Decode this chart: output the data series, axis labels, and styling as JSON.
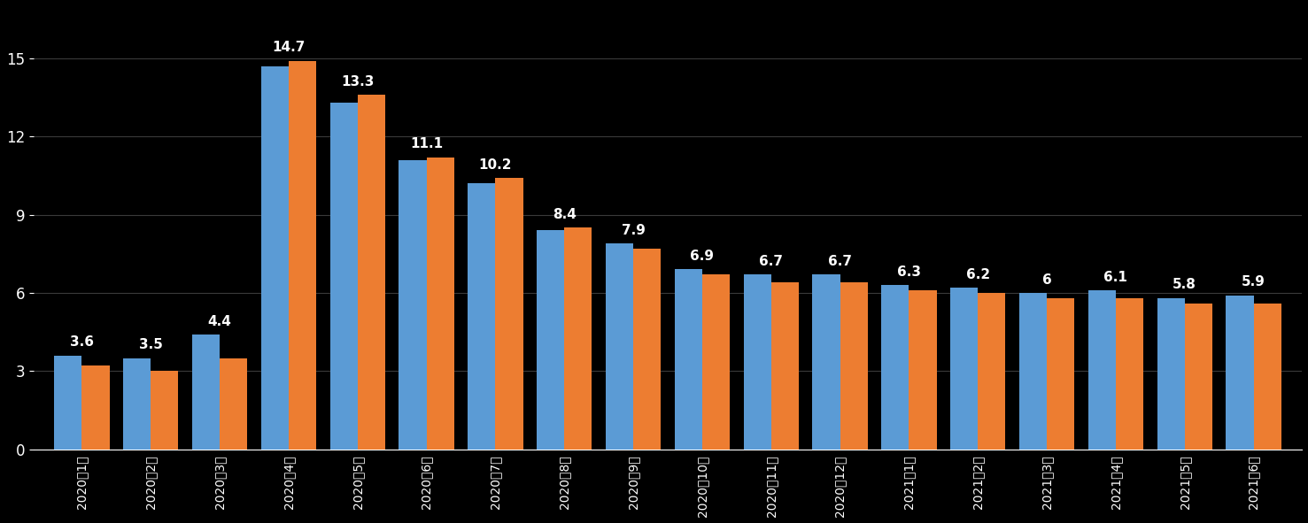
{
  "categories": [
    "2020年1月",
    "2020年2月",
    "2020年3月",
    "2020年4月",
    "2020年5月",
    "2020年6月",
    "2020年7月",
    "2020年8月",
    "2020年9月",
    "2020年10月",
    "2020年11月",
    "2020年12月",
    "2021年1月",
    "2021年2月",
    "2021年3月",
    "2021年4月",
    "2021年5月",
    "2021年6月"
  ],
  "blue_values": [
    3.6,
    3.5,
    4.4,
    14.7,
    13.3,
    11.1,
    10.2,
    8.4,
    7.9,
    6.9,
    6.7,
    6.7,
    6.3,
    6.2,
    6.0,
    6.1,
    5.8,
    5.9
  ],
  "orange_values": [
    3.2,
    3.0,
    3.5,
    14.9,
    13.6,
    11.2,
    10.4,
    8.5,
    7.7,
    6.7,
    6.4,
    6.4,
    6.1,
    6.0,
    5.8,
    5.8,
    5.6,
    5.6
  ],
  "labels": [
    "3.6",
    "3.5",
    "4.4",
    "14.7",
    "13.3",
    "11.1",
    "10.2",
    "8.4",
    "7.9",
    "6.9",
    "6.7",
    "6.7",
    "6.3",
    "6.2",
    "6",
    "6.1",
    "5.8",
    "5.9"
  ],
  "blue_color": "#5b9bd5",
  "orange_color": "#ed7d31",
  "background_color": "#000000",
  "text_color": "#ffffff",
  "grid_color": "#3a3a3a",
  "ylim": [
    0,
    17
  ],
  "yticks": [
    0,
    3,
    6,
    9,
    12,
    15
  ],
  "bar_width": 0.4,
  "label_fontsize": 11,
  "tick_fontsize": 10,
  "ytick_fontsize": 12
}
